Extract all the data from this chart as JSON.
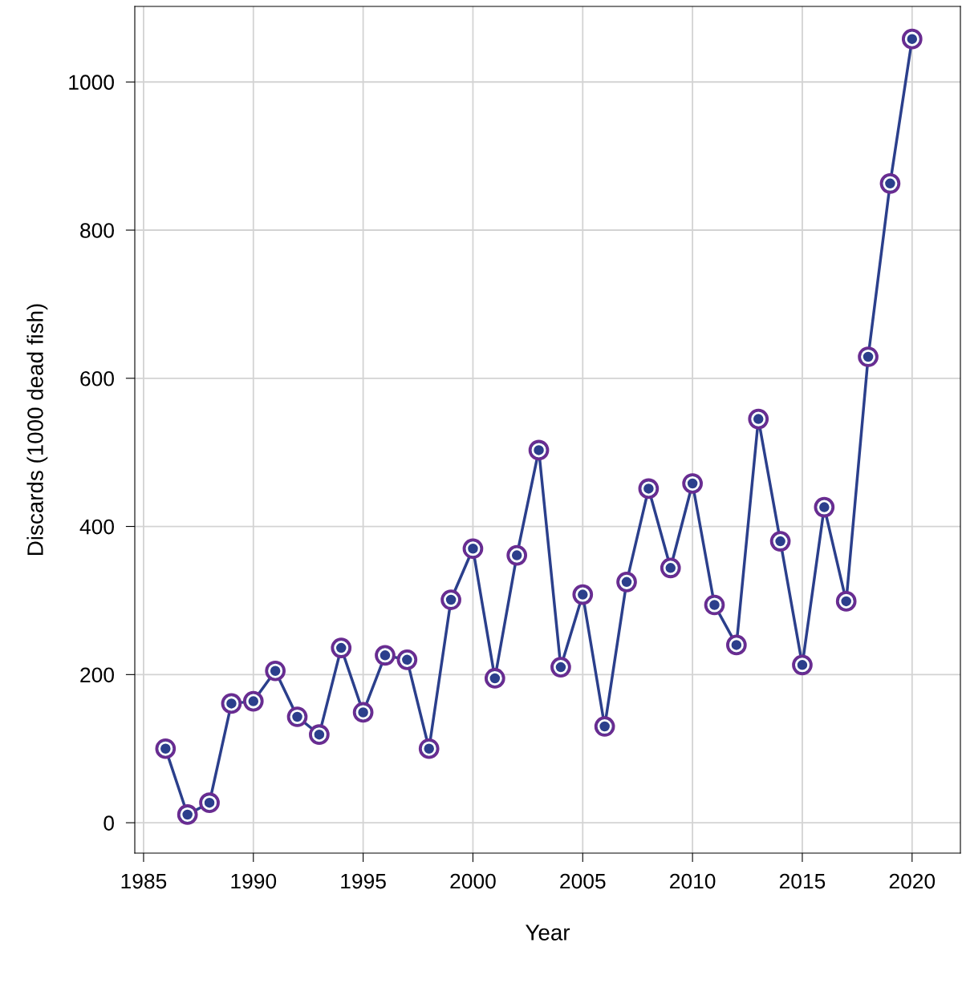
{
  "chart_data": {
    "type": "line",
    "xlabel": "Year",
    "ylabel": "Discards (1000 dead fish)",
    "x": [
      1986,
      1987,
      1988,
      1989,
      1990,
      1991,
      1992,
      1993,
      1994,
      1995,
      1996,
      1997,
      1998,
      1999,
      2000,
      2001,
      2002,
      2003,
      2004,
      2005,
      2006,
      2007,
      2008,
      2009,
      2010,
      2011,
      2012,
      2013,
      2014,
      2015,
      2016,
      2017,
      2018,
      2019,
      2020
    ],
    "series": [
      {
        "color": "#2b3f8c",
        "values": [
          100,
          11,
          27,
          161,
          164,
          205,
          143,
          119,
          236,
          149,
          226,
          220,
          100,
          301,
          370,
          195,
          361,
          503,
          210,
          308,
          130,
          325,
          451,
          344,
          458,
          294,
          240,
          545,
          380,
          213,
          426,
          299,
          629,
          863,
          1058
        ]
      }
    ],
    "xlim": [
      1984.6,
      2022.2
    ],
    "ylim": [
      -41,
      1102
    ],
    "xticks": [
      1985,
      1990,
      1995,
      2000,
      2005,
      2010,
      2015,
      2020
    ],
    "yticks": [
      0,
      200,
      400,
      600,
      800,
      1000
    ],
    "grid": true,
    "marker": "circle",
    "line_style": "solid"
  }
}
